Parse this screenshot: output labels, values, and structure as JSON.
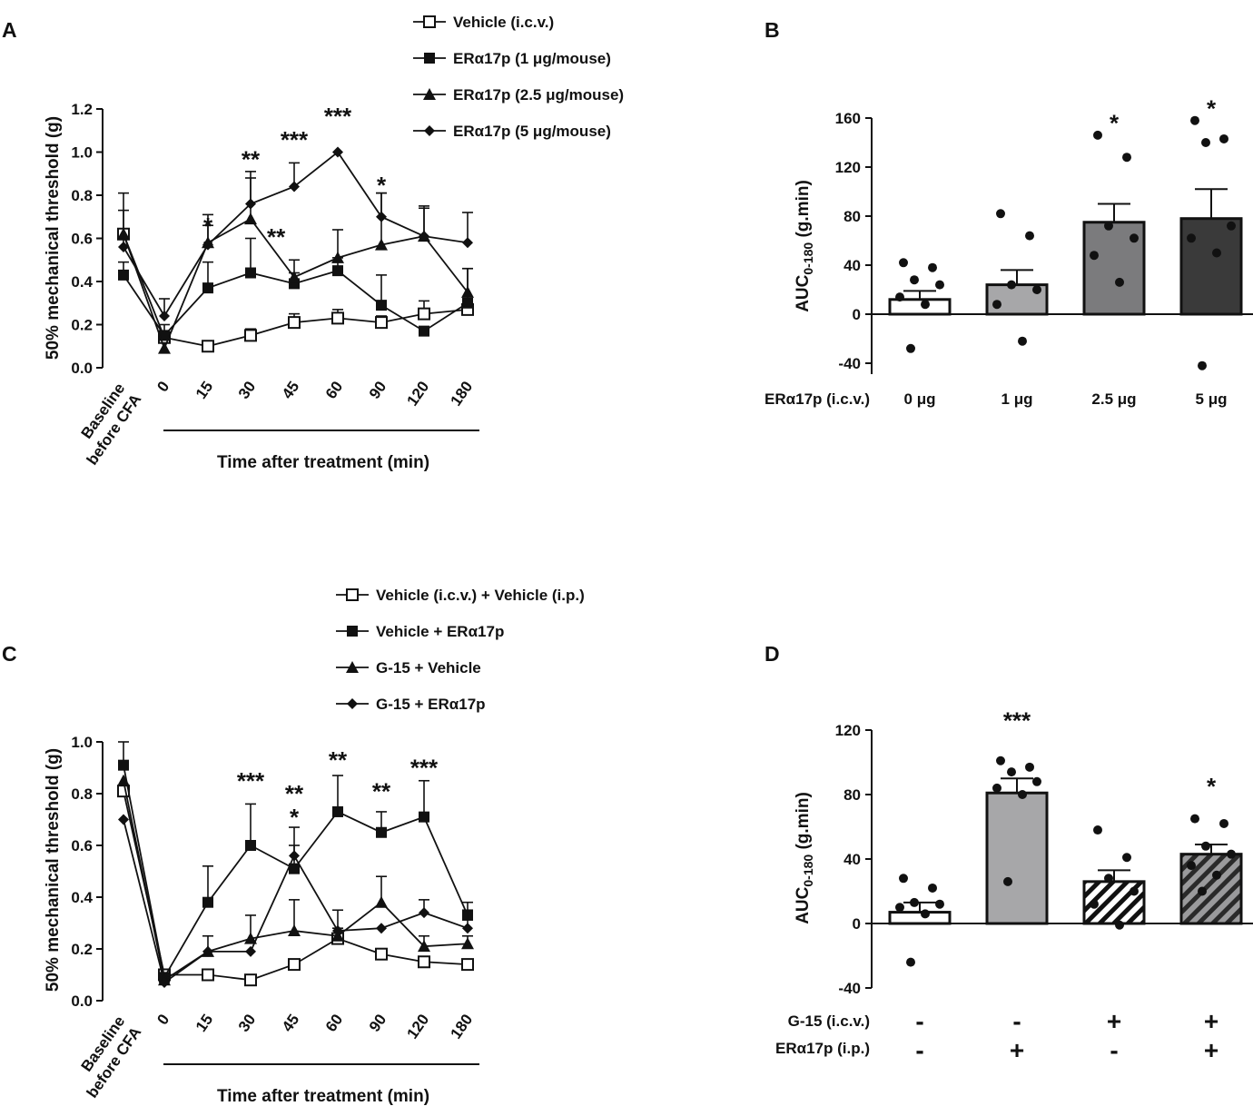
{
  "panels": [
    {
      "id": "A",
      "chart_data": {
        "type": "line",
        "ylabel": "50% mechanical threshold (g)",
        "xlabel": "Time after treatment (min)",
        "ylim": [
          0,
          1.2
        ],
        "yticks": [
          "0.0",
          "0.2",
          "0.4",
          "0.6",
          "0.8",
          "1.0",
          "1.2"
        ],
        "categories": [
          "Baseline before CFA",
          "0",
          "15",
          "30",
          "45",
          "60",
          "90",
          "120",
          "180"
        ],
        "baseline_label": [
          "Baseline",
          "before CFA"
        ],
        "series": [
          {
            "name": "Vehicle (i.c.v.)",
            "marker": "square-open",
            "values": [
              0.62,
              0.14,
              0.1,
              0.15,
              0.21,
              0.23,
              0.21,
              0.25,
              0.27
            ],
            "err": [
              0.0,
              0.03,
              0.02,
              0.03,
              0.04,
              0.04,
              0.03,
              0.06,
              0.05
            ]
          },
          {
            "name": "ERα17p (1 μg/mouse)",
            "marker": "square",
            "values": [
              0.43,
              0.15,
              0.37,
              0.44,
              0.39,
              0.45,
              0.29,
              0.17,
              0.3
            ],
            "err": [
              0.06,
              0.05,
              0.12,
              0.16,
              0.05,
              0.06,
              0.14,
              0.0,
              0.16
            ]
          },
          {
            "name": "ERα17p (2.5 μg/mouse)",
            "marker": "triangle",
            "values": [
              0.62,
              0.09,
              0.58,
              0.69,
              0.42,
              0.51,
              0.57,
              0.61,
              0.35
            ],
            "err": [
              0.11,
              0.0,
              0.08,
              0.19,
              0.08,
              0.13,
              0.24,
              0.13,
              0.11
            ]
          },
          {
            "name": "ERα17p (5 μg/mouse)",
            "marker": "diamond",
            "values": [
              0.56,
              0.24,
              0.57,
              0.76,
              0.84,
              1.0,
              0.7,
              0.61,
              0.58
            ],
            "err": [
              0.25,
              0.08,
              0.14,
              0.15,
              0.11,
              0.0,
              0.11,
              0.14,
              0.14
            ]
          }
        ],
        "annotations": [
          {
            "cat": "15",
            "text": "*",
            "level": 0.67
          },
          {
            "cat": "15",
            "text": "*",
            "level": 0.57
          },
          {
            "cat": "30",
            "text": "**",
            "level": 0.98
          },
          {
            "cat": "30",
            "text": "**",
            "level": 0.62,
            "offset": "right"
          },
          {
            "cat": "45",
            "text": "***",
            "level": 1.07
          },
          {
            "cat": "60",
            "text": "***",
            "level": 1.18
          },
          {
            "cat": "90",
            "text": "*",
            "level": 0.86
          }
        ]
      }
    },
    {
      "id": "B",
      "chart_data": {
        "type": "bar",
        "ylabel": "AUC",
        "ylabel_sub": "0-180",
        "ylabel_unit": " (g.min)",
        "ylim": [
          -40,
          160
        ],
        "yticks": [
          "-40",
          "0",
          "40",
          "80",
          "120",
          "160"
        ],
        "row_label": "ERα17p (i.c.v.)",
        "categories": [
          "0 μg",
          "1 μg",
          "2.5 μg",
          "5 μg"
        ],
        "values": [
          12,
          24,
          75,
          78
        ],
        "err": [
          7,
          12,
          15,
          24
        ],
        "fills": [
          "#ffffff",
          "#a7a7a9",
          "#7b7b7d",
          "#3a3a3a"
        ],
        "points": [
          [
            42,
            38,
            28,
            24,
            14,
            8,
            -28
          ],
          [
            82,
            64,
            24,
            20,
            8,
            -22
          ],
          [
            146,
            128,
            72,
            62,
            48,
            26
          ],
          [
            158,
            143,
            140,
            72,
            62,
            50,
            -42
          ]
        ],
        "stars": [
          "",
          "",
          "*",
          "*"
        ]
      }
    },
    {
      "id": "C",
      "chart_data": {
        "type": "line",
        "ylabel": "50% mechanical threshold (g)",
        "xlabel": "Time after treatment (min)",
        "ylim": [
          0,
          1.0
        ],
        "yticks": [
          "0.0",
          "0.2",
          "0.4",
          "0.6",
          "0.8",
          "1.0"
        ],
        "categories": [
          "Baseline before CFA",
          "0",
          "15",
          "30",
          "45",
          "60",
          "90",
          "120",
          "180"
        ],
        "baseline_label": [
          "Baseline",
          "before CFA"
        ],
        "series": [
          {
            "name": "Vehicle (i.c.v.) + Vehicle (i.p.)",
            "marker": "square-open",
            "values": [
              0.81,
              0.1,
              0.1,
              0.08,
              0.14,
              0.24,
              0.18,
              0.15,
              0.14
            ],
            "err": [
              0.0,
              0.0,
              0.02,
              0.02,
              0.02,
              0.02,
              0.02,
              0.02,
              0.02
            ]
          },
          {
            "name": "Vehicle + ERα17p",
            "marker": "square",
            "values": [
              0.91,
              0.09,
              0.38,
              0.6,
              0.51,
              0.73,
              0.65,
              0.71,
              0.33
            ],
            "err": [
              0.09,
              0.0,
              0.14,
              0.16,
              0.16,
              0.14,
              0.08,
              0.14,
              0.05
            ]
          },
          {
            "name": "G-15 + Vehicle",
            "marker": "triangle",
            "values": [
              0.85,
              0.08,
              0.19,
              0.24,
              0.27,
              0.25,
              0.38,
              0.21,
              0.22
            ],
            "err": [
              0.0,
              0.0,
              0.06,
              0.09,
              0.12,
              0.03,
              0.1,
              0.04,
              0.03
            ]
          },
          {
            "name": "G-15 + ERα17p",
            "marker": "diamond",
            "values": [
              0.7,
              0.07,
              0.19,
              0.19,
              0.56,
              0.27,
              0.28,
              0.34,
              0.28
            ],
            "err": [
              0.0,
              0.0,
              0.0,
              0.0,
              0.04,
              0.08,
              0.0,
              0.05,
              0.07
            ]
          }
        ],
        "annotations": [
          {
            "cat": "30",
            "text": "***",
            "level": 0.86
          },
          {
            "cat": "45",
            "text": "**",
            "level": 0.81
          },
          {
            "cat": "45",
            "text": "*",
            "level": 0.72
          },
          {
            "cat": "60",
            "text": "**",
            "level": 0.94
          },
          {
            "cat": "90",
            "text": "**",
            "level": 0.82
          },
          {
            "cat": "120",
            "text": "***",
            "level": 0.91
          }
        ]
      }
    },
    {
      "id": "D",
      "chart_data": {
        "type": "bar",
        "ylabel": "AUC",
        "ylabel_sub": "0-180",
        "ylabel_unit": " (g.min)",
        "ylim": [
          -40,
          120
        ],
        "yticks": [
          "-40",
          "0",
          "40",
          "80",
          "120"
        ],
        "row_labels": [
          "G-15 (i.c.v.)",
          "ERα17p (i.p.)"
        ],
        "rows": [
          [
            "-",
            "-",
            "+",
            "+"
          ],
          [
            "-",
            "+",
            "-",
            "+"
          ]
        ],
        "values": [
          7,
          81,
          26,
          43
        ],
        "err": [
          6,
          9,
          7,
          6
        ],
        "fills": [
          "#ffffff",
          "#a7a7a9",
          "hatch-white",
          "hatch-gray"
        ],
        "points": [
          [
            28,
            22,
            13,
            12,
            10,
            6,
            -24
          ],
          [
            101,
            97,
            94,
            88,
            84,
            80,
            26
          ],
          [
            58,
            41,
            28,
            20,
            12,
            -1
          ],
          [
            65,
            62,
            48,
            43,
            36,
            30,
            20
          ]
        ],
        "stars": [
          "",
          "***",
          "",
          "*"
        ]
      }
    }
  ]
}
